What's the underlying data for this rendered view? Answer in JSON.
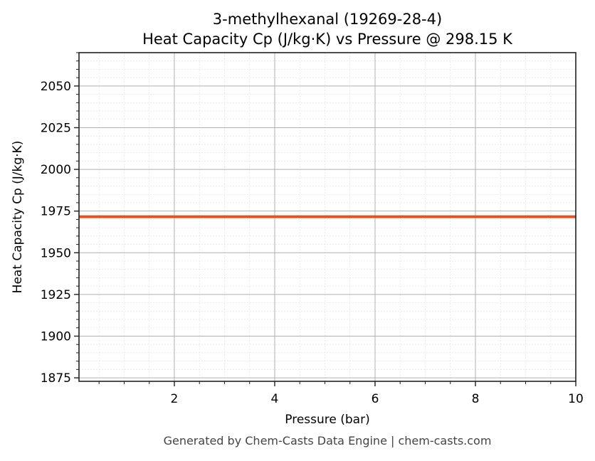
{
  "chart_data": {
    "type": "line",
    "title": "3-methylhexanal (19269-28-4)",
    "subtitle": "Heat Capacity Cp (J/kg·K) vs Pressure @ 298.15 K",
    "xlabel": "Pressure (bar)",
    "ylabel": "Heat Capacity Cp (J/kg·K)",
    "xlim": [
      0.1,
      10
    ],
    "ylim": [
      1872.9,
      2070
    ],
    "xticks": [
      2,
      4,
      6,
      8,
      10
    ],
    "yticks": [
      1875,
      1900,
      1925,
      1950,
      1975,
      2000,
      2025,
      2050
    ],
    "grid": true,
    "series": [
      {
        "x": [
          0.1,
          10
        ],
        "y": [
          1971.6,
          1971.6
        ],
        "color": "#E0541F"
      }
    ]
  },
  "footer": "Generated by Chem-Casts Data Engine | chem-casts.com"
}
